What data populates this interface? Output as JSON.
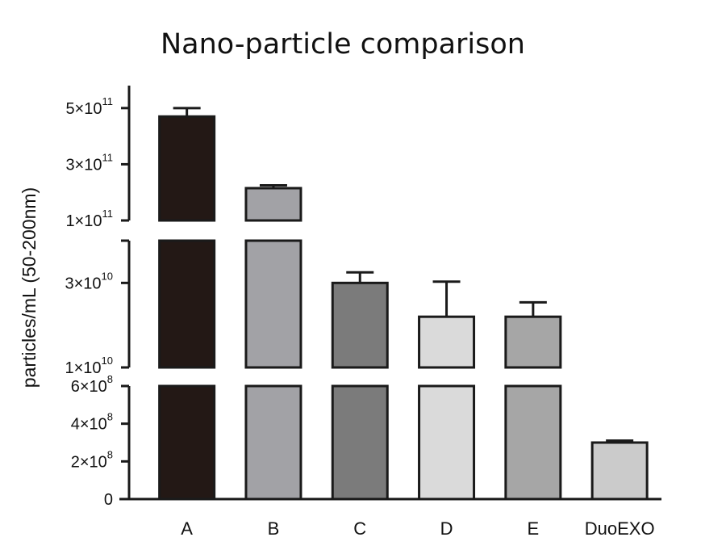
{
  "chart_data": {
    "type": "bar",
    "title": "Nano-particle comparison",
    "ylabel": "particles/mL (50-200nm)",
    "xlabel": "",
    "categories": [
      "A",
      "B",
      "C",
      "D",
      "E",
      "DuoEXO"
    ],
    "values": [
      470000000000,
      215000000000,
      30000000000,
      22000000000,
      22000000000,
      300000000
    ],
    "error_upper": [
      500000000000,
      225000000000,
      32500000000,
      30300000000,
      25400000000,
      310000000
    ],
    "bar_colors": [
      "#231815",
      "#a2a2a6",
      "#7b7b7b",
      "#dadada",
      "#a6a6a6",
      "#cbcbcb"
    ],
    "y_axis_segments": [
      {
        "range": [
          0,
          600000000
        ],
        "ticks": [
          {
            "value": 0,
            "mantissa": "0",
            "exponent": ""
          },
          {
            "value": 200000000,
            "mantissa": "2×10",
            "exponent": "8"
          },
          {
            "value": 400000000,
            "mantissa": "4×10",
            "exponent": "8"
          },
          {
            "value": 600000000,
            "mantissa": "6×10",
            "exponent": "8"
          }
        ]
      },
      {
        "range": [
          10000000000,
          40000000000
        ],
        "ticks": [
          {
            "value": 10000000000,
            "mantissa": "1×10",
            "exponent": "10"
          },
          {
            "value": 30000000000,
            "mantissa": "3×10",
            "exponent": "10"
          }
        ]
      },
      {
        "range": [
          100000000000,
          580000000000
        ],
        "ticks": [
          {
            "value": 100000000000,
            "mantissa": "1×10",
            "exponent": "11"
          },
          {
            "value": 300000000000,
            "mantissa": "3×10",
            "exponent": "11"
          },
          {
            "value": 500000000000,
            "mantissa": "5×10",
            "exponent": "11"
          }
        ]
      }
    ],
    "grid": false,
    "legend": "none"
  }
}
